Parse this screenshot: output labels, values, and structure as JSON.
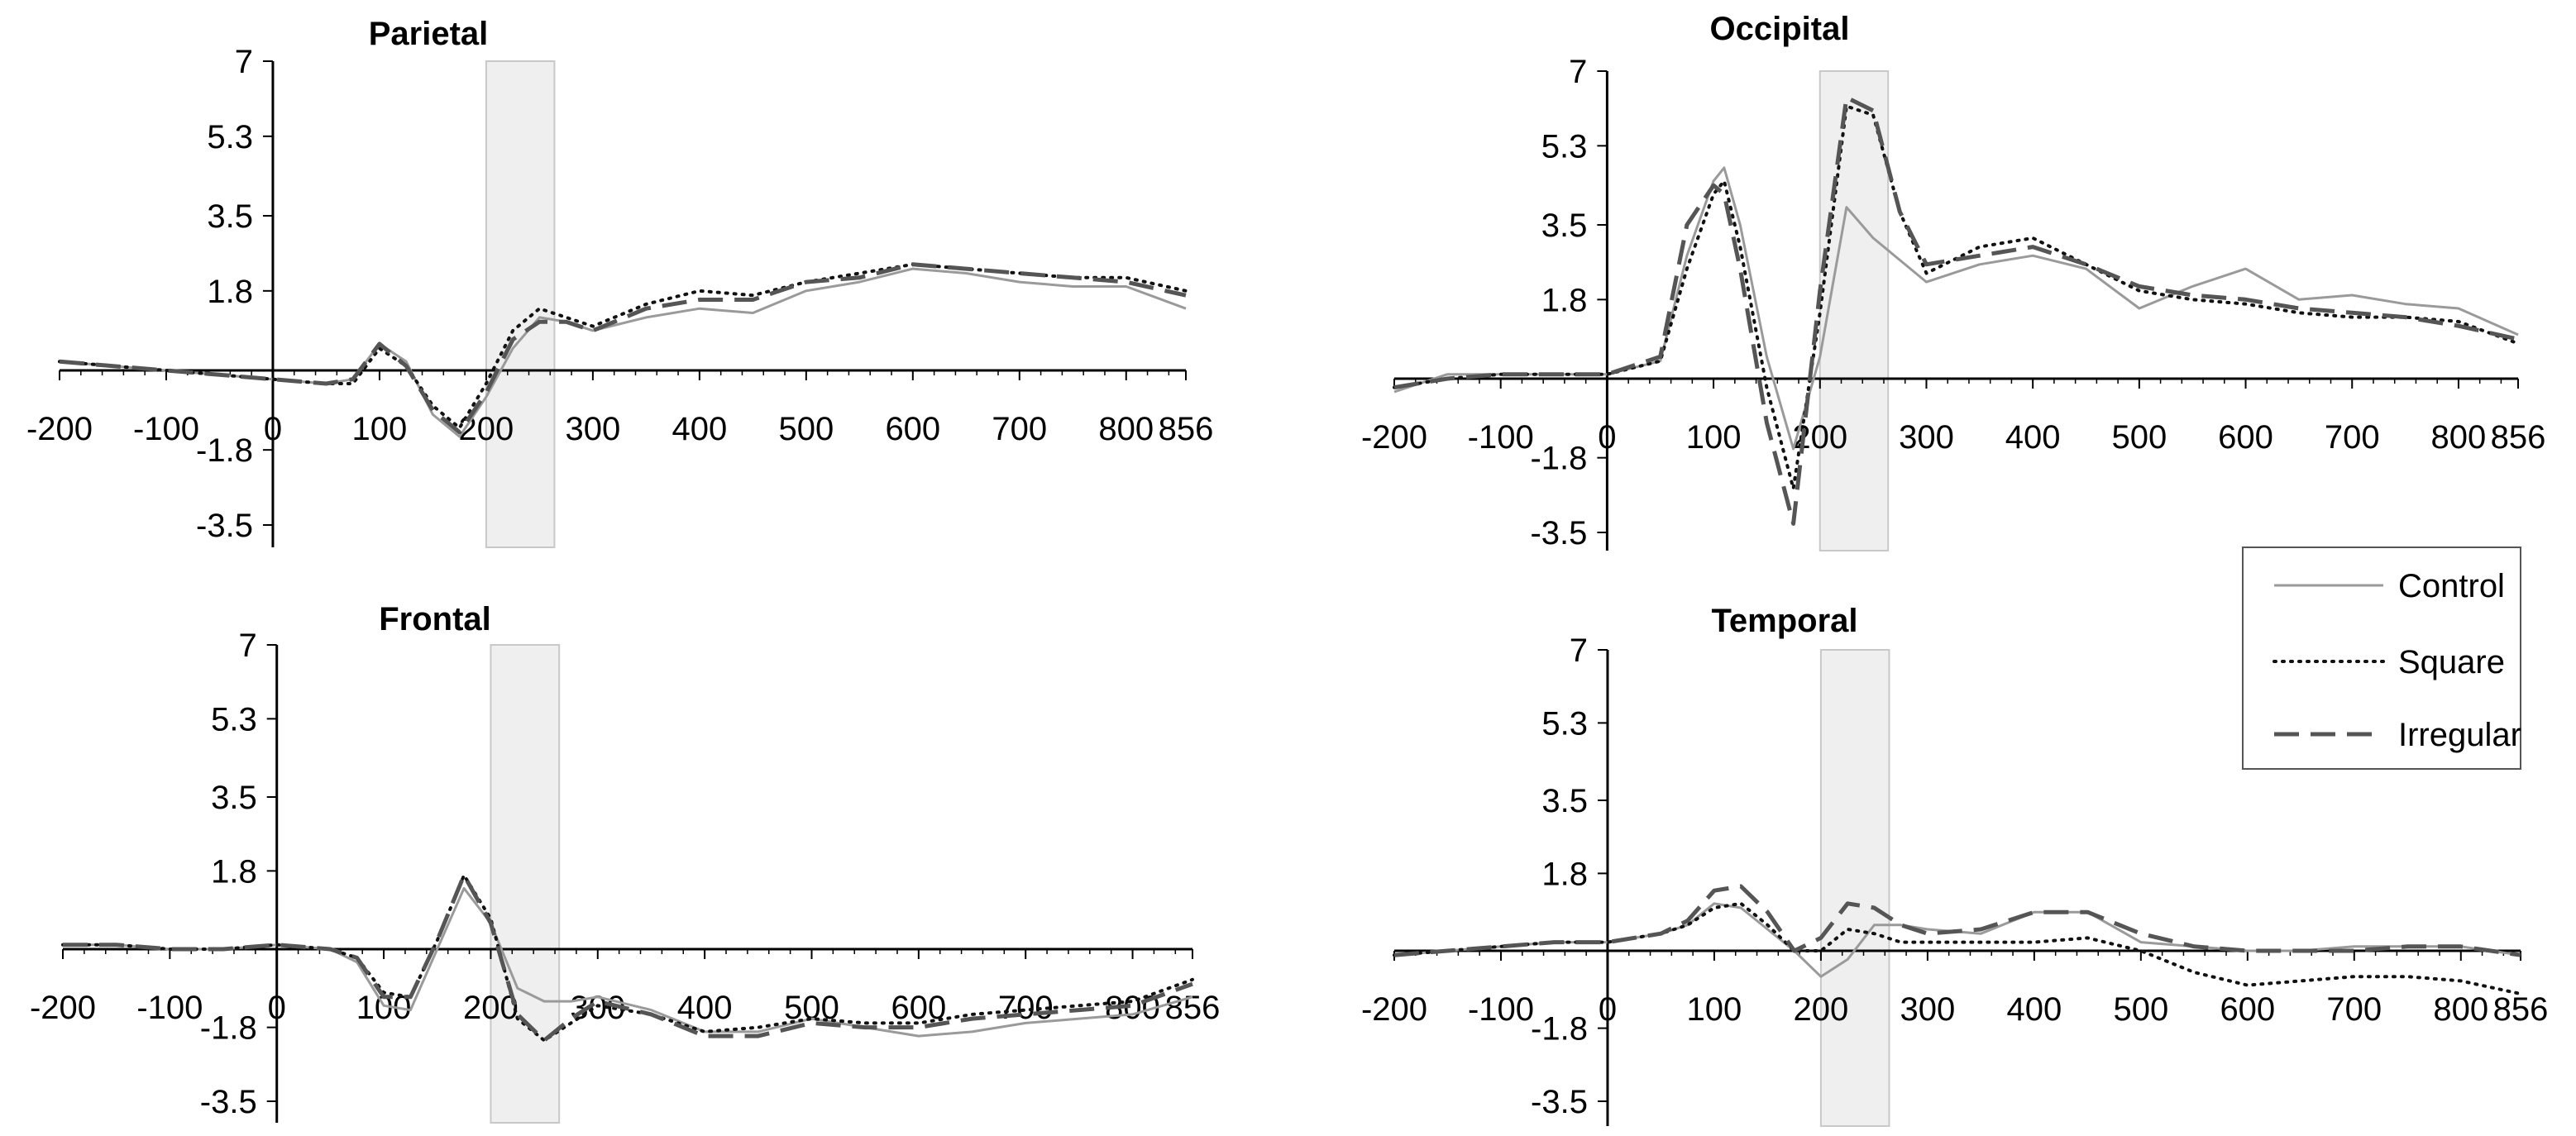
{
  "legend": {
    "items": [
      {
        "label": "Control",
        "style": "solid",
        "color": "#9a9a9a"
      },
      {
        "label": "Square",
        "style": "dotted",
        "color": "#111111"
      },
      {
        "label": "Irregular",
        "style": "dashed",
        "color": "#555555"
      }
    ]
  },
  "chart_data": [
    {
      "type": "line",
      "title": "Parietal",
      "xlabel": "",
      "ylabel": "",
      "xlim": [
        -200,
        856
      ],
      "ylim": [
        -3.8,
        7
      ],
      "xticks": [
        "-200",
        "-100",
        "0",
        "100",
        "200",
        "300",
        "400",
        "500",
        "600",
        "700",
        "800",
        "856"
      ],
      "yticks": [
        "7",
        "5.3",
        "3.5",
        "1.8",
        "-1.8",
        "-3.5"
      ],
      "highlight_window": [
        200,
        264
      ],
      "x": [
        -200,
        -150,
        -100,
        -50,
        0,
        50,
        75,
        100,
        125,
        150,
        175,
        200,
        225,
        250,
        275,
        300,
        350,
        400,
        450,
        500,
        550,
        600,
        650,
        700,
        750,
        800,
        856
      ],
      "series": [
        {
          "name": "Control",
          "values": [
            0.2,
            0.1,
            0.0,
            -0.1,
            -0.2,
            -0.3,
            -0.2,
            0.6,
            0.2,
            -1.0,
            -1.5,
            -0.6,
            0.5,
            1.2,
            1.1,
            0.9,
            1.2,
            1.4,
            1.3,
            1.8,
            2.0,
            2.3,
            2.2,
            2.0,
            1.9,
            1.9,
            1.4
          ]
        },
        {
          "name": "Square",
          "values": [
            0.2,
            0.1,
            0.0,
            -0.1,
            -0.2,
            -0.3,
            -0.3,
            0.5,
            0.1,
            -0.8,
            -1.3,
            -0.3,
            0.9,
            1.4,
            1.2,
            1.0,
            1.5,
            1.8,
            1.7,
            2.0,
            2.2,
            2.4,
            2.3,
            2.2,
            2.1,
            2.1,
            1.8
          ]
        },
        {
          "name": "Irregular",
          "values": [
            0.2,
            0.1,
            0.0,
            -0.1,
            -0.2,
            -0.3,
            -0.2,
            0.6,
            0.1,
            -0.9,
            -1.4,
            -0.5,
            0.7,
            1.1,
            1.1,
            0.9,
            1.4,
            1.6,
            1.6,
            2.0,
            2.1,
            2.4,
            2.3,
            2.2,
            2.1,
            2.0,
            1.7
          ]
        }
      ]
    },
    {
      "type": "line",
      "title": "Occipital",
      "xlabel": "",
      "ylabel": "",
      "xlim": [
        -200,
        856
      ],
      "ylim": [
        -3.8,
        7
      ],
      "xticks": [
        "-200",
        "-100",
        "0",
        "100",
        "200",
        "300",
        "400",
        "500",
        "600",
        "700",
        "800",
        "856"
      ],
      "yticks": [
        "7",
        "5.3",
        "3.5",
        "1.8",
        "-1.8",
        "-3.5"
      ],
      "highlight_window": [
        200,
        264
      ],
      "x": [
        -200,
        -150,
        -100,
        -50,
        0,
        50,
        75,
        100,
        110,
        125,
        150,
        175,
        200,
        225,
        250,
        275,
        300,
        350,
        400,
        450,
        500,
        550,
        600,
        650,
        700,
        750,
        800,
        856
      ],
      "series": [
        {
          "name": "Control",
          "values": [
            -0.3,
            0.1,
            0.1,
            0.1,
            0.1,
            0.4,
            2.8,
            4.5,
            4.8,
            3.5,
            0.5,
            -1.6,
            0.5,
            3.9,
            3.2,
            2.7,
            2.2,
            2.6,
            2.8,
            2.5,
            1.6,
            2.1,
            2.5,
            1.8,
            1.9,
            1.7,
            1.6,
            1.0
          ]
        },
        {
          "name": "Square",
          "values": [
            -0.2,
            0.0,
            0.1,
            0.1,
            0.1,
            0.4,
            2.5,
            4.2,
            4.5,
            3.0,
            -0.2,
            -2.5,
            1.5,
            6.2,
            6.0,
            3.8,
            2.4,
            3.0,
            3.2,
            2.6,
            2.0,
            1.8,
            1.7,
            1.5,
            1.4,
            1.4,
            1.3,
            0.8
          ]
        },
        {
          "name": "Irregular",
          "values": [
            -0.2,
            0.0,
            0.1,
            0.1,
            0.1,
            0.5,
            3.5,
            4.4,
            4.2,
            2.5,
            -1.0,
            -3.3,
            2.0,
            6.4,
            6.1,
            3.8,
            2.6,
            2.8,
            3.0,
            2.6,
            2.1,
            1.9,
            1.8,
            1.6,
            1.5,
            1.4,
            1.2,
            0.9
          ]
        }
      ]
    },
    {
      "type": "line",
      "title": "Frontal",
      "xlabel": "",
      "ylabel": "",
      "xlim": [
        -200,
        856
      ],
      "ylim": [
        -3.8,
        7
      ],
      "xticks": [
        "-200",
        "-100",
        "0",
        "100",
        "200",
        "300",
        "400",
        "500",
        "600",
        "700",
        "800",
        "856"
      ],
      "yticks": [
        "7",
        "5.3",
        "3.5",
        "1.8",
        "-1.8",
        "-3.5"
      ],
      "highlight_window": [
        200,
        264
      ],
      "x": [
        -200,
        -150,
        -100,
        -50,
        0,
        50,
        75,
        100,
        125,
        150,
        175,
        200,
        225,
        250,
        275,
        300,
        350,
        400,
        450,
        500,
        550,
        600,
        650,
        700,
        750,
        800,
        856
      ],
      "series": [
        {
          "name": "Control",
          "values": [
            0.1,
            0.1,
            0.0,
            0.0,
            0.1,
            0.0,
            -0.3,
            -1.3,
            -1.4,
            0.0,
            1.4,
            0.6,
            -0.9,
            -1.2,
            -1.2,
            -1.1,
            -1.4,
            -1.9,
            -1.9,
            -1.6,
            -1.8,
            -2.0,
            -1.9,
            -1.7,
            -1.6,
            -1.5,
            -1.1
          ]
        },
        {
          "name": "Square",
          "values": [
            0.1,
            0.1,
            0.0,
            0.0,
            0.1,
            0.0,
            -0.2,
            -1.0,
            -1.1,
            0.2,
            1.7,
            0.7,
            -1.6,
            -2.1,
            -1.7,
            -1.3,
            -1.5,
            -1.9,
            -1.8,
            -1.6,
            -1.7,
            -1.7,
            -1.5,
            -1.4,
            -1.3,
            -1.2,
            -0.7
          ]
        },
        {
          "name": "Irregular",
          "values": [
            0.1,
            0.1,
            0.0,
            0.0,
            0.1,
            0.0,
            -0.2,
            -1.1,
            -1.1,
            0.2,
            1.7,
            0.6,
            -1.5,
            -2.1,
            -1.6,
            -1.2,
            -1.5,
            -2.0,
            -2.0,
            -1.7,
            -1.8,
            -1.8,
            -1.6,
            -1.5,
            -1.4,
            -1.3,
            -0.8
          ]
        }
      ]
    },
    {
      "type": "line",
      "title": "Temporal",
      "xlabel": "",
      "ylabel": "",
      "xlim": [
        -200,
        856
      ],
      "ylim": [
        -3.8,
        7
      ],
      "xticks": [
        "-200",
        "-100",
        "0",
        "100",
        "200",
        "300",
        "400",
        "500",
        "600",
        "700",
        "800",
        "856"
      ],
      "yticks": [
        "7",
        "5.3",
        "3.5",
        "1.8",
        "-1.8",
        "-3.5"
      ],
      "highlight_window": [
        200,
        264
      ],
      "x": [
        -200,
        -150,
        -100,
        -50,
        0,
        50,
        75,
        100,
        125,
        150,
        175,
        200,
        225,
        250,
        275,
        300,
        350,
        400,
        450,
        500,
        550,
        600,
        650,
        700,
        750,
        800,
        856
      ],
      "series": [
        {
          "name": "Control",
          "values": [
            -0.1,
            0.0,
            0.1,
            0.2,
            0.2,
            0.4,
            0.6,
            1.1,
            1.0,
            0.5,
            0.0,
            -0.6,
            -0.2,
            0.6,
            0.6,
            0.5,
            0.4,
            0.9,
            0.9,
            0.2,
            0.1,
            0.0,
            0.0,
            0.1,
            0.1,
            0.1,
            -0.1
          ]
        },
        {
          "name": "Square",
          "values": [
            -0.1,
            0.0,
            0.1,
            0.2,
            0.2,
            0.4,
            0.6,
            1.0,
            1.1,
            0.6,
            0.0,
            0.0,
            0.5,
            0.4,
            0.2,
            0.2,
            0.2,
            0.2,
            0.3,
            0.0,
            -0.5,
            -0.8,
            -0.7,
            -0.6,
            -0.6,
            -0.7,
            -1.0
          ]
        },
        {
          "name": "Irregular",
          "values": [
            -0.1,
            0.0,
            0.1,
            0.2,
            0.2,
            0.4,
            0.7,
            1.4,
            1.5,
            0.9,
            0.0,
            0.3,
            1.1,
            1.0,
            0.6,
            0.4,
            0.5,
            0.9,
            0.9,
            0.4,
            0.1,
            0.0,
            0.0,
            0.0,
            0.1,
            0.1,
            -0.1
          ]
        }
      ]
    }
  ]
}
